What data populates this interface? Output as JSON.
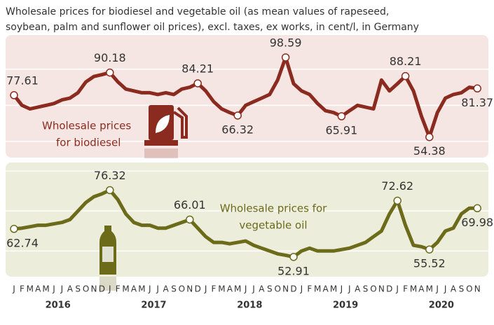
{
  "title": [
    "Wholesale prices for biodiesel and vegetable oil (as mean values of rapeseed,",
    "soybean, palm and sunflower oil prices), excl. taxes, ex works, in cent/l, in Germany"
  ],
  "x_axis": {
    "categories": [
      "J",
      "F",
      "M",
      "A",
      "M",
      "J",
      "J",
      "A",
      "S",
      "O",
      "N",
      "D",
      "J",
      "F",
      "M",
      "A",
      "M",
      "J",
      "J",
      "A",
      "S",
      "O",
      "N",
      "D",
      "J",
      "F",
      "M",
      "A",
      "M",
      "J",
      "J",
      "A",
      "S",
      "O",
      "N",
      "D",
      "J",
      "F",
      "M",
      "A",
      "M",
      "J",
      "J",
      "A",
      "S",
      "O",
      "N",
      "D",
      "J",
      "F",
      "M",
      "A",
      "M",
      "J",
      "J",
      "A",
      "S",
      "O",
      "N"
    ],
    "years": [
      "2016",
      "2017",
      "2018",
      "2019",
      "2020"
    ]
  },
  "chart_data": [
    {
      "type": "line",
      "name": [
        "Wholesale prices",
        "for biodiesel"
      ],
      "color": "#8b2a1e",
      "background": "#f5e6e3",
      "values": [
        77.61,
        72,
        70,
        71,
        72,
        73,
        75,
        76,
        79,
        85,
        88,
        89,
        90.18,
        85,
        81,
        80,
        79,
        79,
        78,
        79,
        78,
        81,
        82,
        84.21,
        80,
        74,
        70,
        68,
        66.32,
        72,
        74,
        76,
        78,
        86,
        98.59,
        84,
        80,
        78,
        73,
        69,
        68,
        65.91,
        69,
        72,
        71,
        70,
        86,
        80,
        84,
        88.21,
        80,
        66,
        54.38,
        68,
        76,
        78,
        79,
        82,
        81.37
      ],
      "labeled": [
        0,
        12,
        23,
        28,
        34,
        41,
        49,
        52,
        58
      ],
      "ylim": [
        43,
        111
      ],
      "yticks": [
        52,
        72,
        92
      ],
      "grid": true
    },
    {
      "type": "line",
      "name": [
        "Wholesale prices for",
        "vegetable oil"
      ],
      "color": "#6b6b1a",
      "background": "#ededdc",
      "values": [
        62.74,
        63,
        63.5,
        64,
        64,
        64.5,
        65,
        66,
        69,
        72,
        74,
        75,
        76.32,
        73,
        68,
        65,
        64,
        64,
        63,
        63,
        64,
        65,
        66.01,
        63,
        60,
        58,
        58,
        57.5,
        58,
        58.5,
        57,
        56,
        55,
        54,
        53.5,
        52.91,
        55,
        56,
        55,
        55,
        55,
        55.5,
        56,
        57,
        58,
        60,
        62,
        68,
        72.62,
        64,
        57,
        56.5,
        55.52,
        58,
        62,
        63,
        68,
        70,
        69.98
      ],
      "labeled": [
        0,
        12,
        22,
        35,
        48,
        52,
        58
      ],
      "ylim": [
        46,
        86
      ],
      "yticks": [
        55,
        69,
        83
      ],
      "grid": true
    }
  ]
}
